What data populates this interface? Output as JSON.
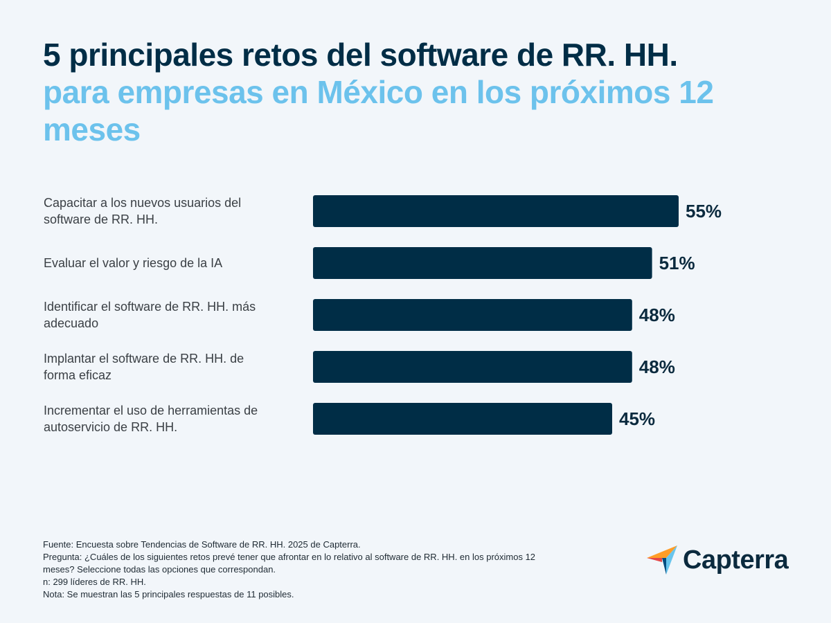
{
  "header": {
    "title_line1": "5 principales retos del software de RR. HH.",
    "title_line2": "para empresas en México en los próximos 12 meses"
  },
  "chart_data": {
    "type": "bar",
    "orientation": "horizontal",
    "categories": [
      [
        "Capacitar a los nuevos usuarios del",
        "software de RR. HH."
      ],
      [
        "Evaluar el valor y riesgo de la IA"
      ],
      [
        "Identificar el software de RR. HH. más",
        "adecuado"
      ],
      [
        "Implantar el software de RR. HH. de",
        "forma eficaz"
      ],
      [
        "Incrementar el uso de herramientas de",
        "autoservicio de RR. HH."
      ]
    ],
    "values": [
      55,
      51,
      48,
      48,
      45
    ],
    "value_labels": [
      "55%",
      "51%",
      "48%",
      "48%",
      "45%"
    ],
    "xlim": [
      0,
      55
    ],
    "bar_color": "#002d46",
    "grid": false,
    "legend": "none"
  },
  "footer": {
    "lines": [
      "Fuente: Encuesta sobre Tendencias de Software de RR. HH. 2025 de Capterra.",
      "Pregunta: ¿Cuáles de los siguientes retos prevé tener que afrontar en lo relativo al software de RR. HH. en los próximos 12",
      "meses? Seleccione todas las opciones que correspondan.",
      "n: 299 líderes de RR. HH.",
      "Nota: Se muestran las 5 principales respuestas de 11 posibles."
    ]
  },
  "brand": {
    "name": "Capterra",
    "icon": "capterra-arrow-icon",
    "colors": [
      "#ff9d28",
      "#68c5ed",
      "#044d80",
      "#e54747"
    ]
  }
}
